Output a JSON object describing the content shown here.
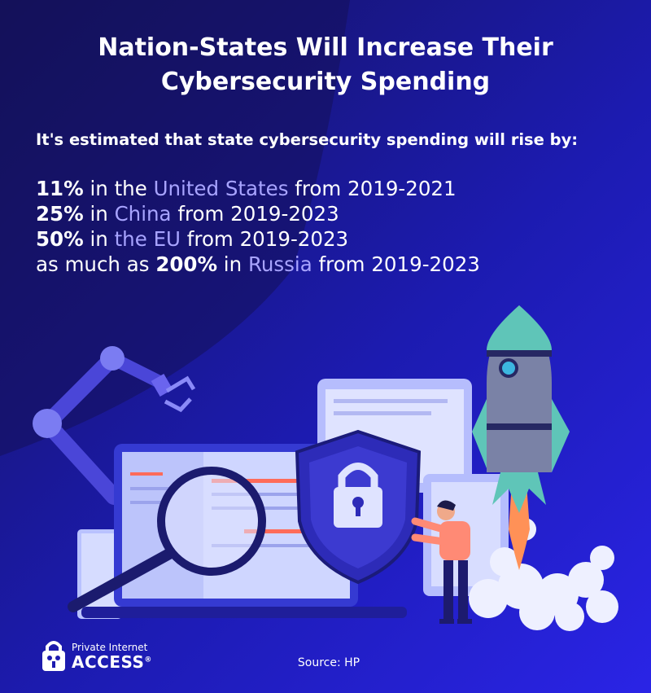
{
  "title": {
    "line1": "Nation-States Will Increase Their",
    "line2": "Cybersecurity Spending"
  },
  "intro": "It's estimated that state cybersecurity spending will rise by:",
  "stats": [
    {
      "prefix": "",
      "percent": "11%",
      "mid": " in the ",
      "region": "United States",
      "period": " from 2019-2021"
    },
    {
      "prefix": "",
      "percent": "25%",
      "mid": " in ",
      "region": "China",
      "period": " from 2019-2023"
    },
    {
      "prefix": "",
      "percent": "50%",
      "mid": " in ",
      "region": "the EU",
      "period": " from 2019-2023"
    },
    {
      "prefix": "as much as ",
      "percent": "200%",
      "mid": " in ",
      "region": "Russia",
      "period": " from 2019-2023"
    }
  ],
  "logo": {
    "line1": "Private Internet",
    "line2": "ACCESS",
    "mark": "®"
  },
  "source": "Source: HP",
  "colors": {
    "background_dark": "#15125a",
    "background_bright": "#2a24e6",
    "region_highlight": "#a8a4ff",
    "text": "#ffffff"
  },
  "icons": [
    "robot-arm-icon",
    "laptop-icon",
    "magnifier-icon",
    "shield-lock-icon",
    "rocket-icon",
    "person-icon",
    "lock-logo-icon"
  ]
}
